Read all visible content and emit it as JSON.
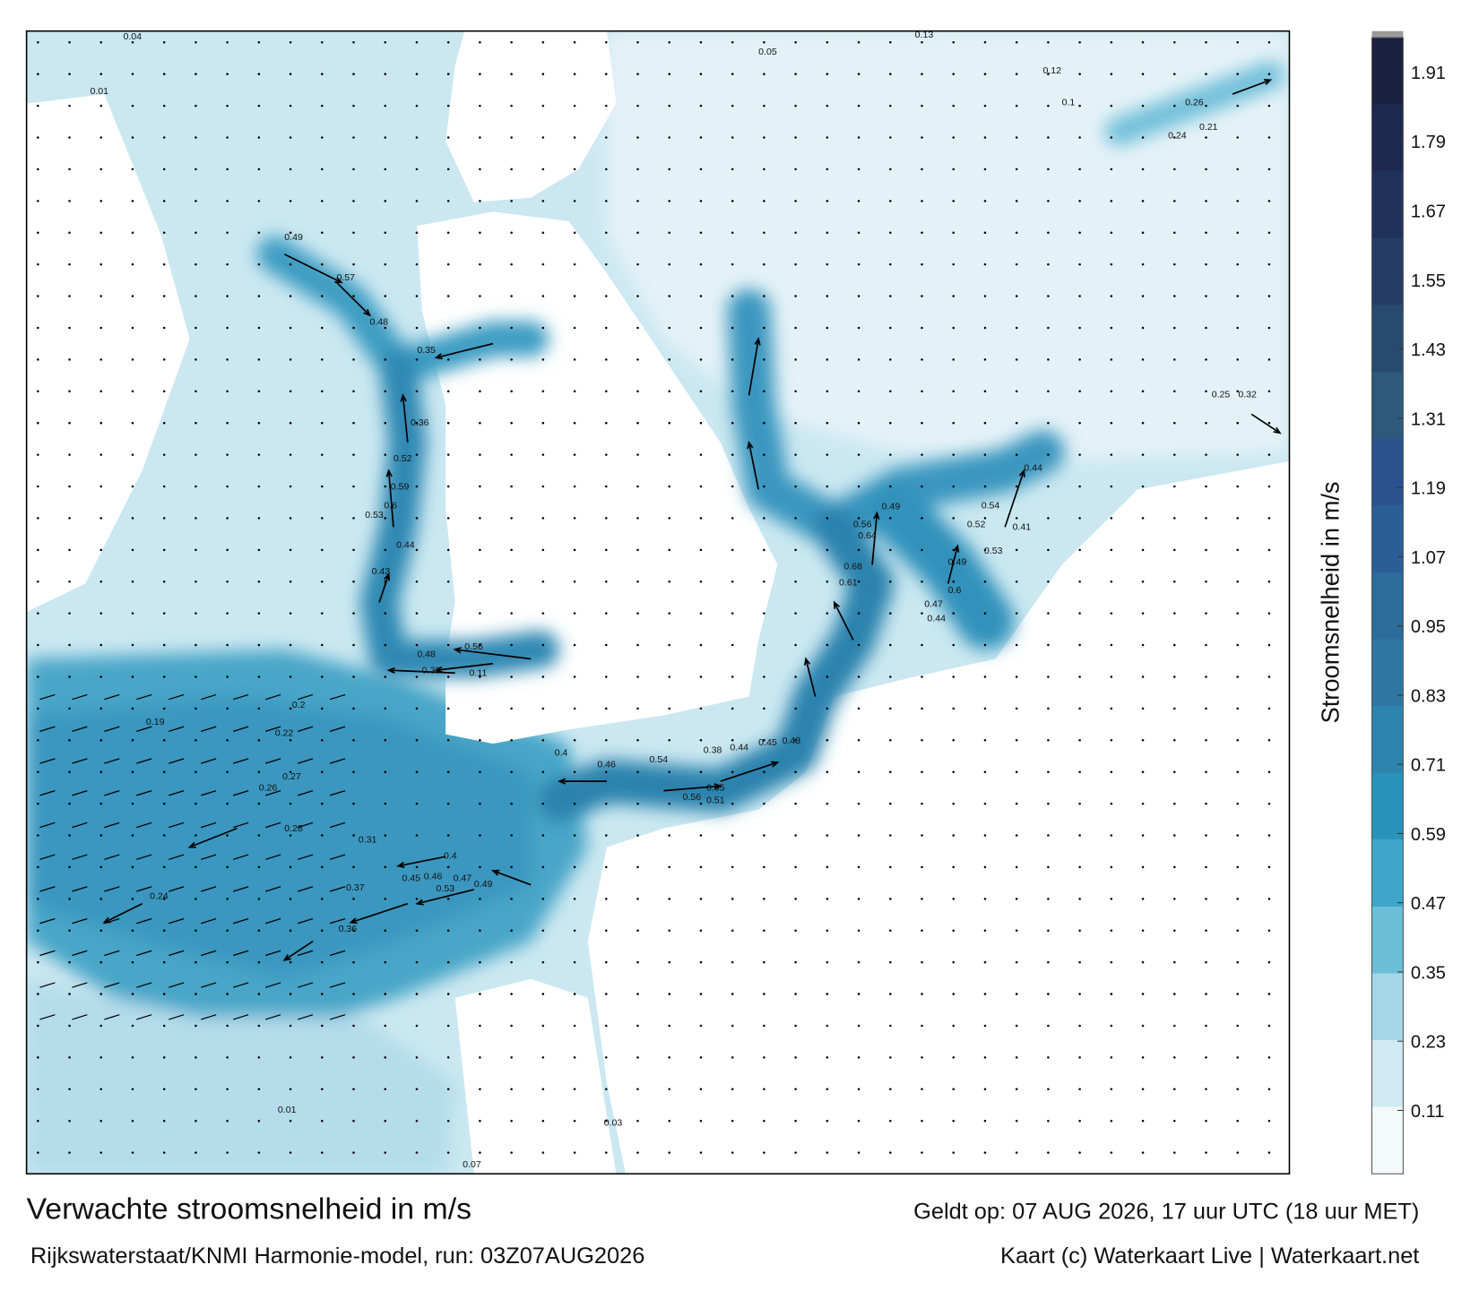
{
  "title": "Verwachte stroomsnelheid in m/s",
  "valid_time": "Geldt op: 07 AUG 2026, 17 uur UTC (18 uur MET)",
  "source": "Rijkswaterstaat/KNMI Harmonie-model, run: 03Z07AUG2026",
  "credit": "Kaart (c) Waterkaart Live | Waterkaart.net",
  "colorbar": {
    "label": "Stroomsnelheid in m/s",
    "lim": [
      0,
      1.97
    ],
    "ticks": [
      0.11,
      0.23,
      0.35,
      0.47,
      0.59,
      0.71,
      0.83,
      0.95,
      1.07,
      1.19,
      1.31,
      1.43,
      1.55,
      1.67,
      1.79,
      1.91
    ],
    "colors": [
      "#f4fafc",
      "#cfeaf2",
      "#a3d7e6",
      "#6cbfd8",
      "#3ea6c9",
      "#2a93bb",
      "#2d84ac",
      "#2f77a2",
      "#2c6b9a",
      "#2b5e95",
      "#2a528c",
      "#2d5a7c",
      "#294a70",
      "#253d66",
      "#20325a",
      "#1d294e",
      "#1a2040"
    ]
  },
  "map_value_labels": [
    "0.49",
    "0.57",
    "0.48",
    "0.35",
    "0.36",
    "0.52",
    "0.59",
    "0.6",
    "0.53",
    "0.44",
    "0.43",
    "0.56",
    "0.48",
    "0.33",
    "0.11",
    "0.4",
    "0.46",
    "0.54",
    "0.56",
    "0.55",
    "0.51",
    "0.38",
    "0.44",
    "0.45",
    "0.43",
    "0.68",
    "0.61",
    "0.64",
    "0.56",
    "0.49",
    "0.54",
    "0.52",
    "0.53",
    "0.49",
    "0.6",
    "0.47",
    "0.44",
    "0.41",
    "0.44",
    "0.4",
    "0.45",
    "0.46",
    "0.53",
    "0.47",
    "0.49",
    "0.36",
    "0.37",
    "0.31",
    "0.28",
    "0.27",
    "0.26",
    "0.24",
    "0.22",
    "0.2",
    "0.19",
    "0.26",
    "0.24",
    "0.21",
    "0.25",
    "0.32",
    "0.13",
    "0.12",
    "0.1",
    "0.05",
    "0.04",
    "0.01",
    "0.07",
    "0.03",
    "0.01"
  ]
}
